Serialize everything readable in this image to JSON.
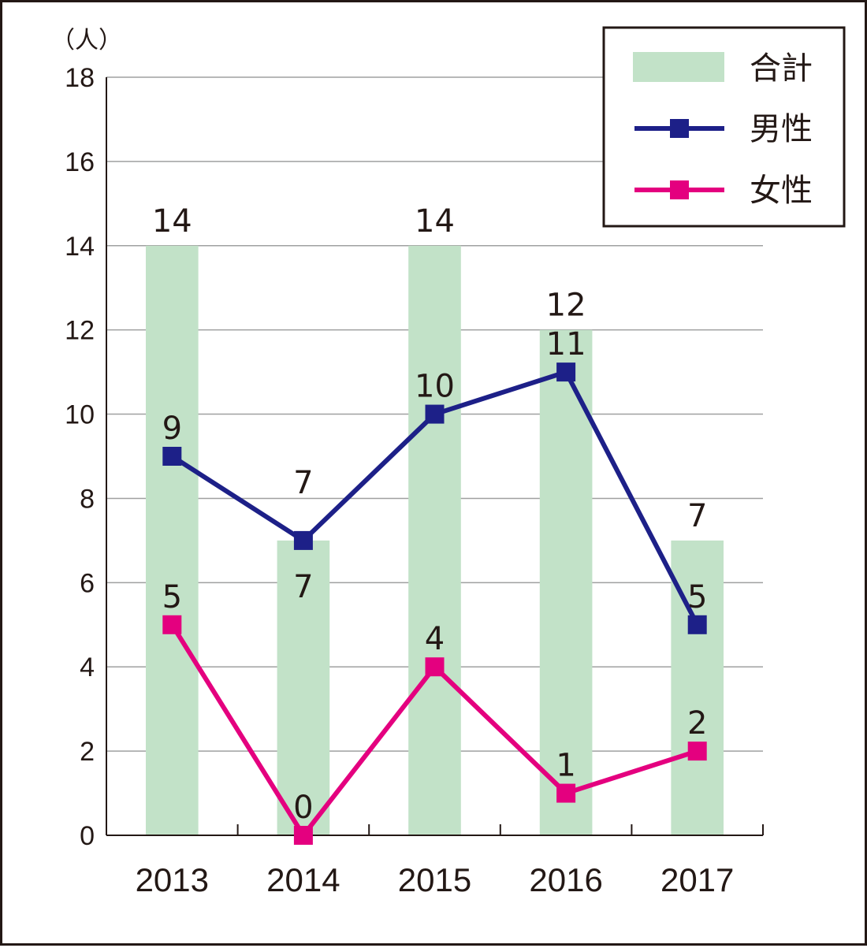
{
  "chart_data": {
    "type": "bar",
    "unit_label": "（人）",
    "categories": [
      "2013",
      "2014",
      "2015",
      "2016",
      "2017"
    ],
    "ylim": [
      0,
      18
    ],
    "yticks": [
      0,
      2,
      4,
      6,
      8,
      10,
      12,
      14,
      16,
      18
    ],
    "grid": true,
    "legend_position": "top-right",
    "series": [
      {
        "name": "合計",
        "kind": "bar",
        "color": "#c2e2c8",
        "values": [
          14,
          7,
          14,
          12,
          7
        ]
      },
      {
        "name": "男性",
        "kind": "line",
        "marker": "square",
        "color": "#1d2088",
        "values": [
          9,
          7,
          10,
          11,
          5
        ]
      },
      {
        "name": "女性",
        "kind": "line",
        "marker": "square",
        "color": "#e4007f",
        "values": [
          5,
          0,
          4,
          1,
          2
        ]
      }
    ]
  }
}
